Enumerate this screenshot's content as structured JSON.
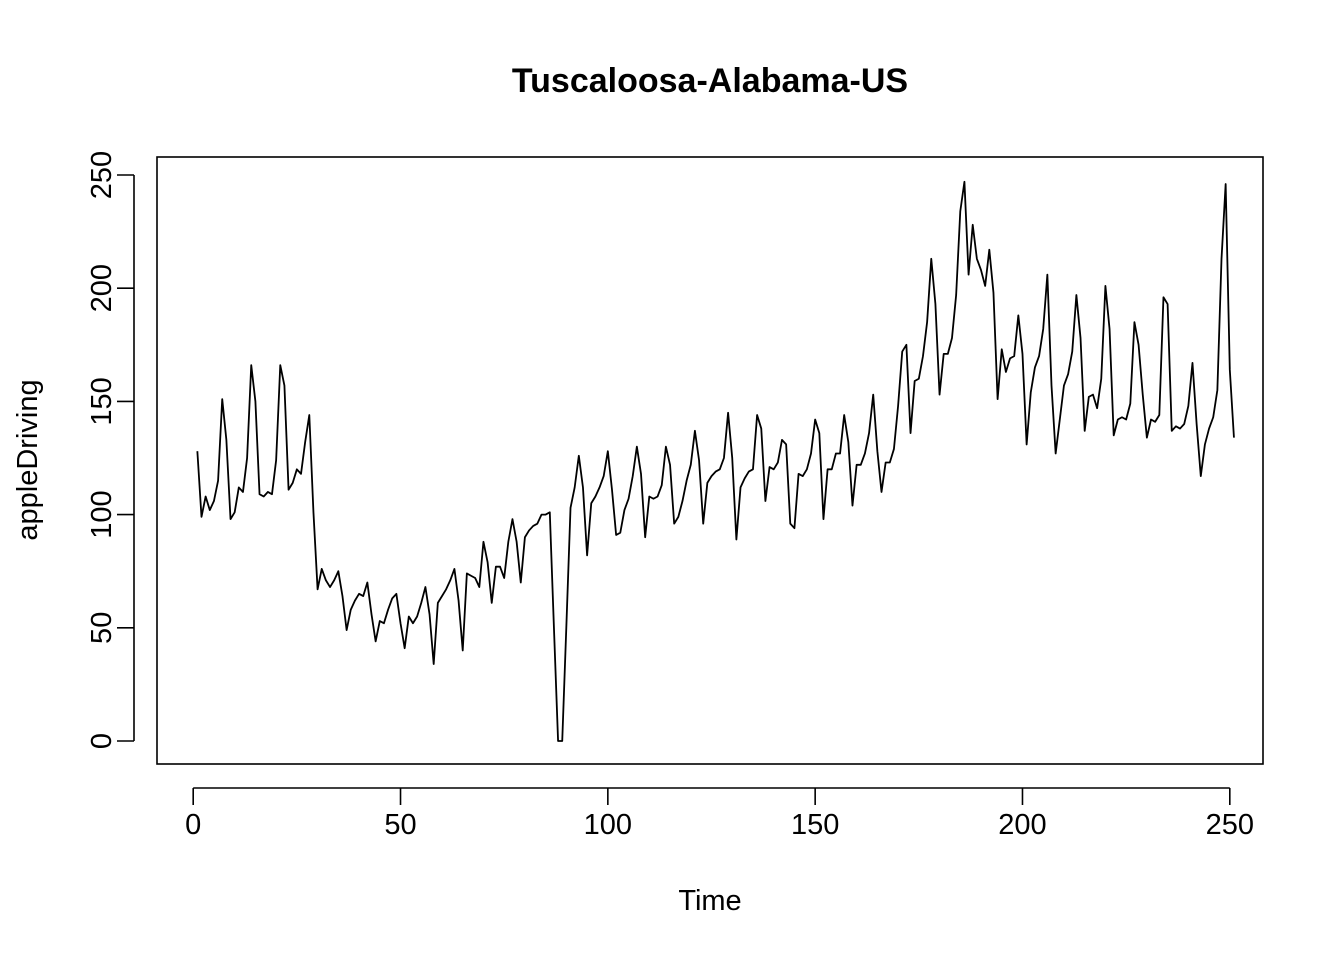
{
  "chart_data": {
    "type": "line",
    "title": "Tuscaloosa-Alabama-US",
    "xlabel": "Time",
    "ylabel": "appleDriving",
    "xlim": [
      1,
      248
    ],
    "ylim": [
      0,
      248
    ],
    "x_ticks": [
      0,
      50,
      100,
      150,
      200,
      250
    ],
    "y_ticks": [
      0,
      50,
      100,
      150,
      200,
      250
    ],
    "grid": false,
    "legend": "none",
    "series": [
      {
        "values": [
          128,
          99,
          108,
          102,
          106,
          115,
          151,
          133,
          98,
          101,
          112,
          110,
          125,
          166,
          150,
          109,
          108,
          110,
          109,
          124,
          166,
          157,
          111,
          114,
          120,
          118,
          132,
          144,
          101,
          67,
          76,
          71,
          68,
          71,
          75,
          64,
          49,
          58,
          62,
          65,
          64,
          70,
          56,
          44,
          53,
          52,
          58,
          63,
          65,
          52,
          41,
          55,
          52,
          55,
          61,
          68,
          56,
          34,
          61,
          64,
          67,
          71,
          76,
          62,
          40,
          74,
          73,
          72,
          68,
          88,
          79,
          61,
          77,
          77,
          72,
          88,
          98,
          88,
          70,
          90,
          93,
          95,
          96,
          100,
          100,
          101,
          50,
          0,
          0,
          51,
          103,
          112,
          126,
          112,
          82,
          105,
          108,
          112,
          117,
          128,
          111,
          91,
          92,
          102,
          107,
          117,
          130,
          118,
          90,
          108,
          107,
          108,
          113,
          130,
          122,
          96,
          99,
          106,
          115,
          122,
          137,
          124,
          96,
          114,
          117,
          119,
          120,
          125,
          145,
          125,
          89,
          112,
          116,
          119,
          120,
          144,
          138,
          106,
          121,
          120,
          123,
          133,
          131,
          96,
          94,
          118,
          117,
          120,
          127,
          142,
          136,
          98,
          120,
          120,
          127,
          127,
          144,
          132,
          104,
          122,
          122,
          127,
          136,
          153,
          128,
          110,
          123,
          123,
          129,
          148,
          172,
          175,
          136,
          159,
          160,
          170,
          185,
          213,
          193,
          153,
          171,
          171,
          178,
          197,
          234,
          247,
          206,
          228,
          213,
          208,
          201,
          217,
          198,
          151,
          173,
          163,
          169,
          170,
          188,
          171,
          131,
          154,
          165,
          170,
          182,
          206,
          157,
          127,
          142,
          157,
          162,
          172,
          197,
          178,
          137,
          152,
          153,
          147,
          160,
          201,
          182,
          135,
          142,
          143,
          142,
          149,
          185,
          175,
          153,
          134,
          142,
          141,
          144,
          196,
          193,
          137,
          139,
          138,
          140,
          148,
          167,
          140,
          117,
          131,
          138,
          143,
          155,
          213,
          246,
          164,
          134
        ]
      }
    ]
  }
}
